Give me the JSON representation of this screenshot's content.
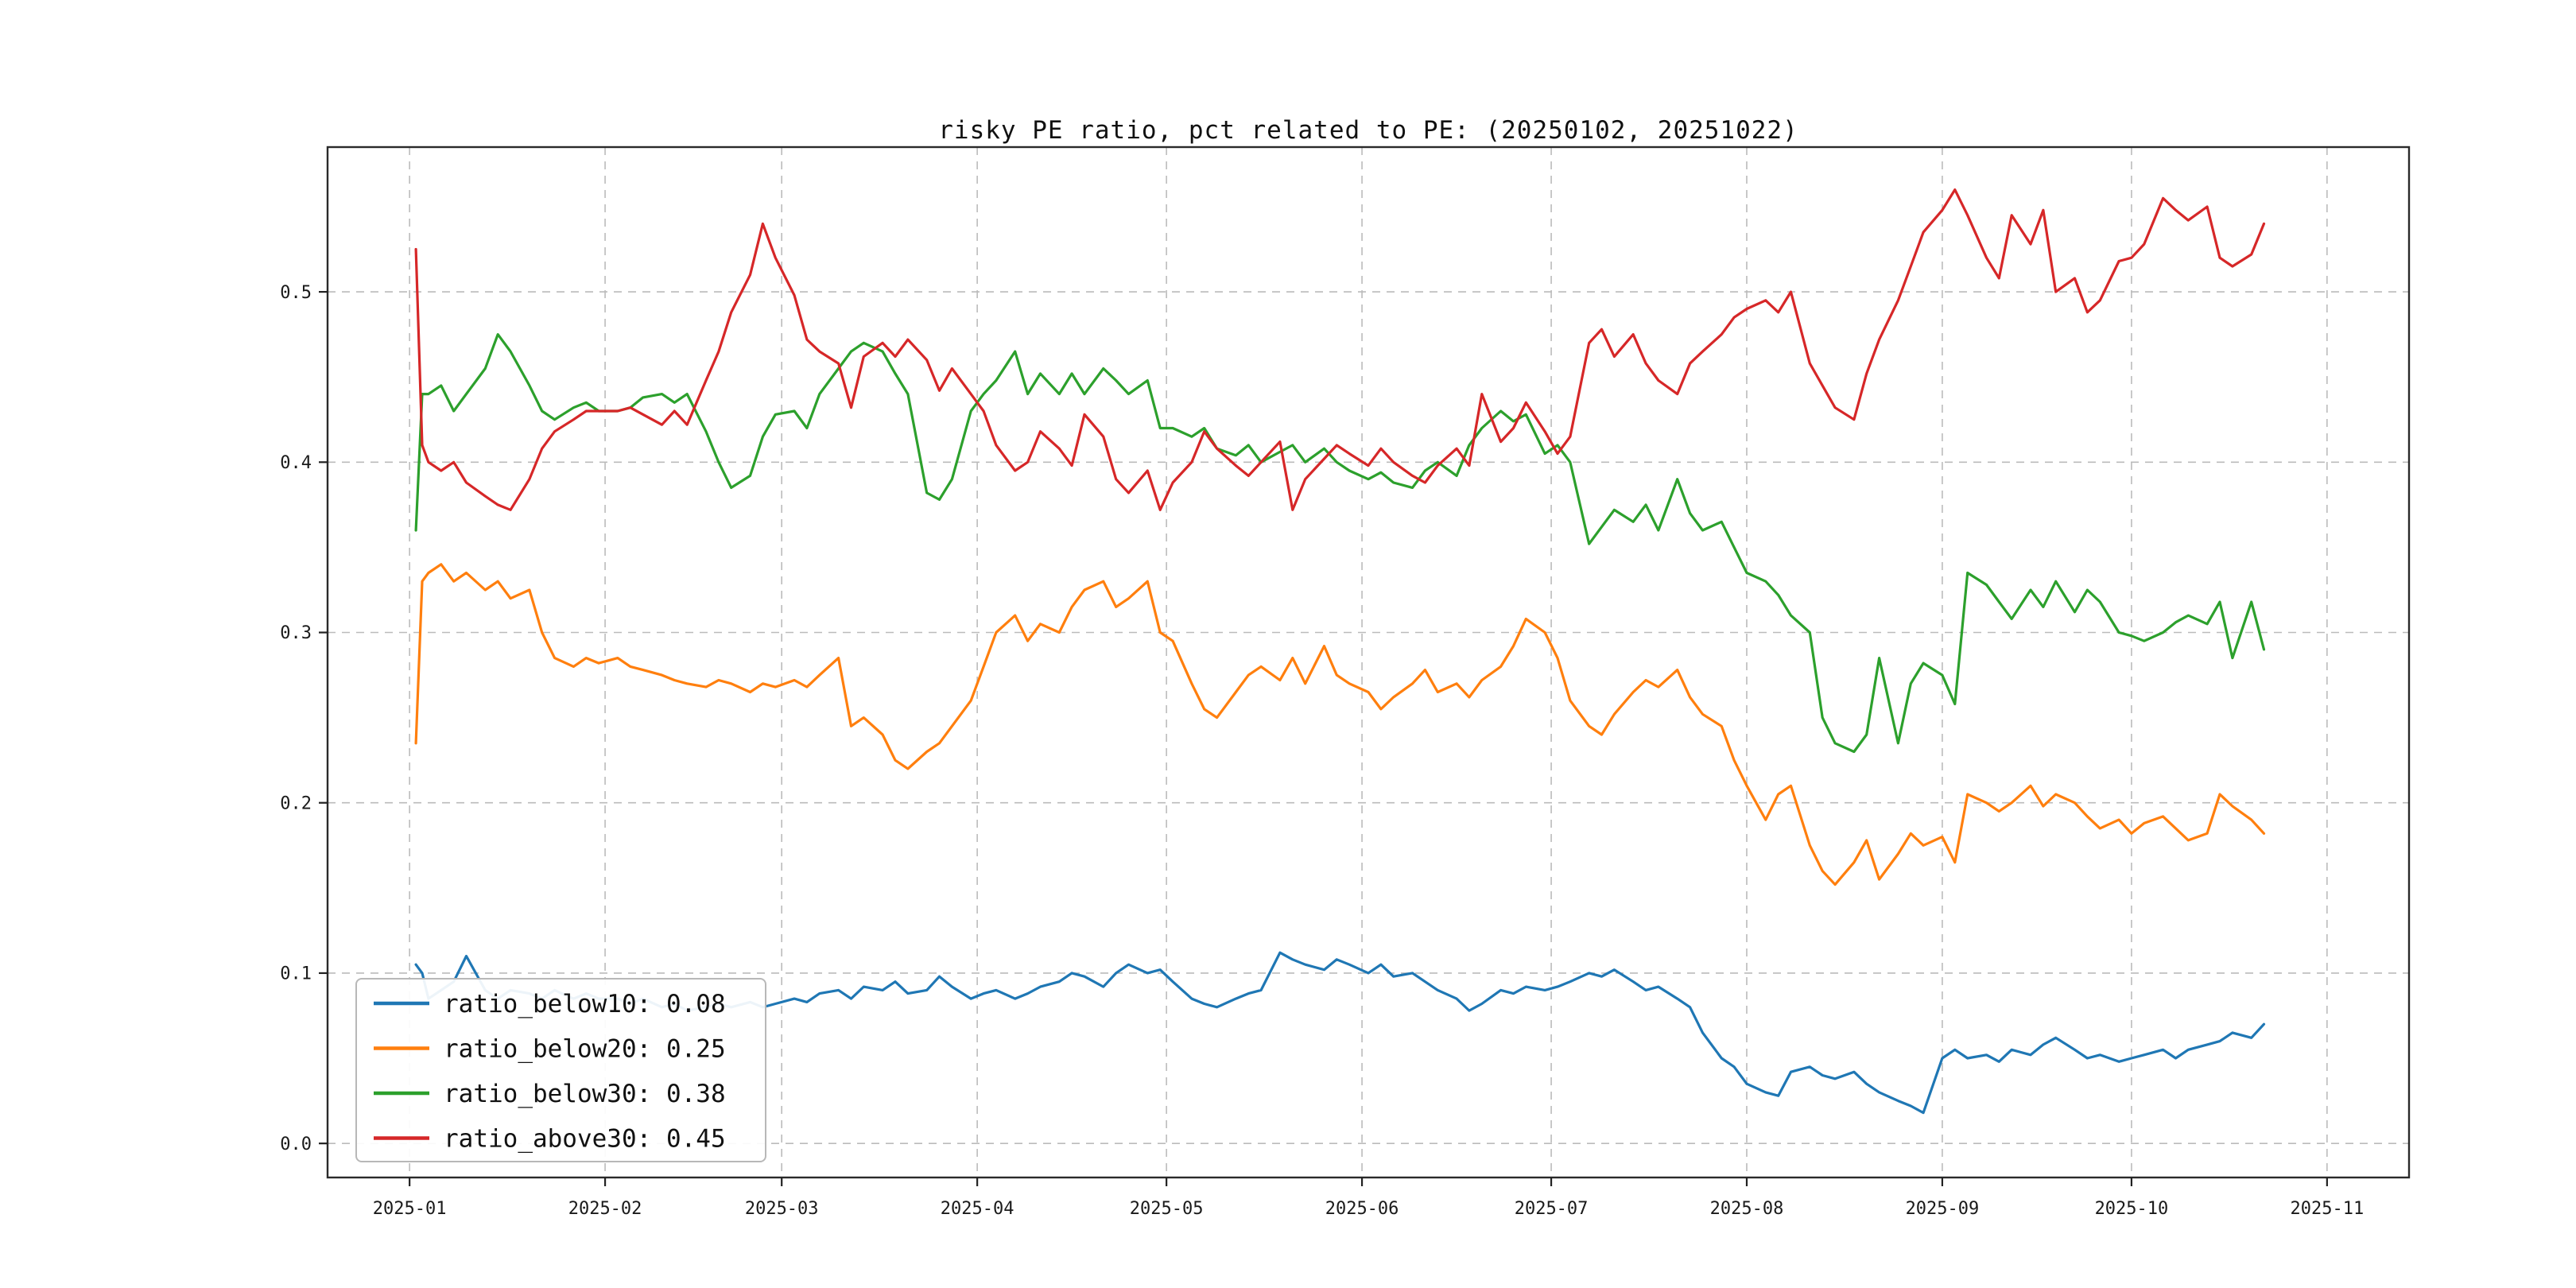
{
  "figure": {
    "background": "#ffffff"
  },
  "chart_data": {
    "type": "line",
    "title": "risky PE ratio, pct related to PE: (20250102, 20251022)",
    "xlabel": "",
    "ylabel": "",
    "grid": true,
    "legend_position": "lower-left",
    "xlim": [
      -13,
      317
    ],
    "ylim": [
      -0.02,
      0.585
    ],
    "x_unit": "days since 2025-01-01",
    "x_ticks": [
      {
        "day": 0,
        "label": "2025-01"
      },
      {
        "day": 31,
        "label": "2025-02"
      },
      {
        "day": 59,
        "label": "2025-03"
      },
      {
        "day": 90,
        "label": "2025-04"
      },
      {
        "day": 120,
        "label": "2025-05"
      },
      {
        "day": 151,
        "label": "2025-06"
      },
      {
        "day": 181,
        "label": "2025-07"
      },
      {
        "day": 212,
        "label": "2025-08"
      },
      {
        "day": 243,
        "label": "2025-09"
      },
      {
        "day": 273,
        "label": "2025-10"
      },
      {
        "day": 304,
        "label": "2025-11"
      }
    ],
    "y_ticks": [
      {
        "value": 0.0,
        "label": "0.0"
      },
      {
        "value": 0.1,
        "label": "0.1"
      },
      {
        "value": 0.2,
        "label": "0.2"
      },
      {
        "value": 0.3,
        "label": "0.3"
      },
      {
        "value": 0.4,
        "label": "0.4"
      },
      {
        "value": 0.5,
        "label": "0.5"
      }
    ],
    "x": [
      1,
      2,
      3,
      5,
      7,
      9,
      12,
      14,
      16,
      19,
      21,
      23,
      26,
      28,
      30,
      33,
      35,
      37,
      40,
      42,
      44,
      47,
      49,
      51,
      54,
      56,
      58,
      61,
      63,
      65,
      68,
      70,
      72,
      75,
      77,
      79,
      82,
      84,
      86,
      89,
      91,
      93,
      96,
      98,
      100,
      103,
      105,
      107,
      110,
      112,
      114,
      117,
      119,
      121,
      124,
      126,
      128,
      131,
      133,
      135,
      138,
      140,
      142,
      145,
      147,
      149,
      152,
      154,
      156,
      159,
      161,
      163,
      166,
      168,
      170,
      173,
      175,
      177,
      180,
      182,
      184,
      187,
      189,
      191,
      194,
      196,
      198,
      201,
      203,
      205,
      208,
      210,
      212,
      215,
      217,
      219,
      222,
      224,
      226,
      229,
      231,
      233,
      236,
      238,
      240,
      243,
      245,
      247,
      250,
      252,
      254,
      257,
      259,
      261,
      264,
      266,
      268,
      271,
      273,
      275,
      278,
      280,
      282,
      285,
      287,
      289,
      292,
      294
    ],
    "series": [
      {
        "name": "ratio_below10",
        "legend_label": "ratio_below10: 0.08",
        "color": "#1f77b4",
        "values": [
          0.105,
          0.1,
          0.085,
          0.09,
          0.095,
          0.11,
          0.09,
          0.085,
          0.09,
          0.088,
          0.085,
          0.09,
          0.085,
          0.088,
          0.085,
          0.085,
          0.082,
          0.085,
          0.08,
          0.082,
          0.078,
          0.08,
          0.082,
          0.08,
          0.083,
          0.08,
          0.082,
          0.085,
          0.083,
          0.088,
          0.09,
          0.085,
          0.092,
          0.09,
          0.095,
          0.088,
          0.09,
          0.098,
          0.092,
          0.085,
          0.088,
          0.09,
          0.085,
          0.088,
          0.092,
          0.095,
          0.1,
          0.098,
          0.092,
          0.1,
          0.105,
          0.1,
          0.102,
          0.095,
          0.085,
          0.082,
          0.08,
          0.085,
          0.088,
          0.09,
          0.112,
          0.108,
          0.105,
          0.102,
          0.108,
          0.105,
          0.1,
          0.105,
          0.098,
          0.1,
          0.095,
          0.09,
          0.085,
          0.078,
          0.082,
          0.09,
          0.088,
          0.092,
          0.09,
          0.092,
          0.095,
          0.1,
          0.098,
          0.102,
          0.095,
          0.09,
          0.092,
          0.085,
          0.08,
          0.065,
          0.05,
          0.045,
          0.035,
          0.03,
          0.028,
          0.042,
          0.045,
          0.04,
          0.038,
          0.042,
          0.035,
          0.03,
          0.025,
          0.022,
          0.018,
          0.05,
          0.055,
          0.05,
          0.052,
          0.048,
          0.055,
          0.052,
          0.058,
          0.062,
          0.055,
          0.05,
          0.052,
          0.048,
          0.05,
          0.052,
          0.055,
          0.05,
          0.055,
          0.058,
          0.06,
          0.065,
          0.062,
          0.07
        ]
      },
      {
        "name": "ratio_below20",
        "legend_label": "ratio_below20: 0.25",
        "color": "#ff7f0e",
        "values": [
          0.235,
          0.33,
          0.335,
          0.34,
          0.33,
          0.335,
          0.325,
          0.33,
          0.32,
          0.325,
          0.3,
          0.285,
          0.28,
          0.285,
          0.282,
          0.285,
          0.28,
          0.278,
          0.275,
          0.272,
          0.27,
          0.268,
          0.272,
          0.27,
          0.265,
          0.27,
          0.268,
          0.272,
          0.268,
          0.275,
          0.285,
          0.245,
          0.25,
          0.24,
          0.225,
          0.22,
          0.23,
          0.235,
          0.245,
          0.26,
          0.28,
          0.3,
          0.31,
          0.295,
          0.305,
          0.3,
          0.315,
          0.325,
          0.33,
          0.315,
          0.32,
          0.33,
          0.3,
          0.295,
          0.27,
          0.255,
          0.25,
          0.265,
          0.275,
          0.28,
          0.272,
          0.285,
          0.27,
          0.292,
          0.275,
          0.27,
          0.265,
          0.255,
          0.262,
          0.27,
          0.278,
          0.265,
          0.27,
          0.262,
          0.272,
          0.28,
          0.292,
          0.308,
          0.3,
          0.285,
          0.26,
          0.245,
          0.24,
          0.252,
          0.265,
          0.272,
          0.268,
          0.278,
          0.262,
          0.252,
          0.245,
          0.225,
          0.21,
          0.19,
          0.205,
          0.21,
          0.175,
          0.16,
          0.152,
          0.165,
          0.178,
          0.155,
          0.17,
          0.182,
          0.175,
          0.18,
          0.165,
          0.205,
          0.2,
          0.195,
          0.2,
          0.21,
          0.198,
          0.205,
          0.2,
          0.192,
          0.185,
          0.19,
          0.182,
          0.188,
          0.192,
          0.185,
          0.178,
          0.182,
          0.205,
          0.198,
          0.19,
          0.182
        ]
      },
      {
        "name": "ratio_below30",
        "legend_label": "ratio_below30: 0.38",
        "color": "#2ca02c",
        "values": [
          0.36,
          0.44,
          0.44,
          0.445,
          0.43,
          0.44,
          0.455,
          0.475,
          0.465,
          0.445,
          0.43,
          0.425,
          0.432,
          0.435,
          0.43,
          0.43,
          0.432,
          0.438,
          0.44,
          0.435,
          0.44,
          0.418,
          0.4,
          0.385,
          0.392,
          0.415,
          0.428,
          0.43,
          0.42,
          0.44,
          0.455,
          0.465,
          0.47,
          0.465,
          0.452,
          0.44,
          0.382,
          0.378,
          0.39,
          0.43,
          0.44,
          0.448,
          0.465,
          0.44,
          0.452,
          0.44,
          0.452,
          0.44,
          0.455,
          0.448,
          0.44,
          0.448,
          0.42,
          0.42,
          0.415,
          0.42,
          0.408,
          0.404,
          0.41,
          0.4,
          0.406,
          0.41,
          0.4,
          0.408,
          0.4,
          0.395,
          0.39,
          0.394,
          0.388,
          0.385,
          0.395,
          0.4,
          0.392,
          0.41,
          0.42,
          0.43,
          0.424,
          0.428,
          0.405,
          0.41,
          0.4,
          0.352,
          0.362,
          0.372,
          0.365,
          0.375,
          0.36,
          0.39,
          0.37,
          0.36,
          0.365,
          0.35,
          0.335,
          0.33,
          0.322,
          0.31,
          0.3,
          0.25,
          0.235,
          0.23,
          0.24,
          0.285,
          0.235,
          0.27,
          0.282,
          0.275,
          0.258,
          0.335,
          0.328,
          0.318,
          0.308,
          0.325,
          0.315,
          0.33,
          0.312,
          0.325,
          0.318,
          0.3,
          0.298,
          0.295,
          0.3,
          0.306,
          0.31,
          0.305,
          0.318,
          0.285,
          0.318,
          0.29
        ]
      },
      {
        "name": "ratio_above30",
        "legend_label": "ratio_above30: 0.45",
        "color": "#d62728",
        "values": [
          0.525,
          0.41,
          0.4,
          0.395,
          0.4,
          0.388,
          0.38,
          0.375,
          0.372,
          0.39,
          0.408,
          0.418,
          0.425,
          0.43,
          0.43,
          0.43,
          0.432,
          0.428,
          0.422,
          0.43,
          0.422,
          0.448,
          0.465,
          0.488,
          0.51,
          0.54,
          0.52,
          0.498,
          0.472,
          0.465,
          0.458,
          0.432,
          0.462,
          0.47,
          0.462,
          0.472,
          0.46,
          0.442,
          0.455,
          0.44,
          0.43,
          0.41,
          0.395,
          0.4,
          0.418,
          0.408,
          0.398,
          0.428,
          0.415,
          0.39,
          0.382,
          0.395,
          0.372,
          0.388,
          0.4,
          0.418,
          0.408,
          0.398,
          0.392,
          0.4,
          0.412,
          0.372,
          0.39,
          0.402,
          0.41,
          0.405,
          0.398,
          0.408,
          0.4,
          0.392,
          0.388,
          0.398,
          0.408,
          0.398,
          0.44,
          0.412,
          0.42,
          0.435,
          0.418,
          0.405,
          0.415,
          0.47,
          0.478,
          0.462,
          0.475,
          0.458,
          0.448,
          0.44,
          0.458,
          0.465,
          0.475,
          0.485,
          0.49,
          0.495,
          0.488,
          0.5,
          0.458,
          0.445,
          0.432,
          0.425,
          0.452,
          0.472,
          0.495,
          0.515,
          0.535,
          0.548,
          0.56,
          0.545,
          0.52,
          0.508,
          0.545,
          0.528,
          0.548,
          0.5,
          0.508,
          0.488,
          0.495,
          0.518,
          0.52,
          0.528,
          0.555,
          0.548,
          0.542,
          0.55,
          0.52,
          0.515,
          0.522,
          0.54
        ]
      }
    ]
  }
}
